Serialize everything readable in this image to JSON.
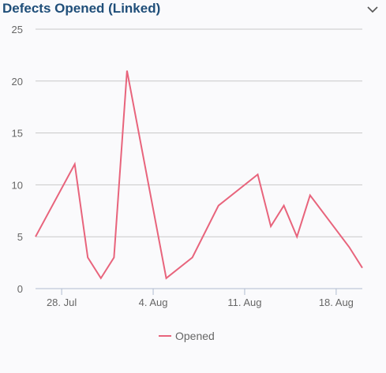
{
  "widget": {
    "title": "Defects Opened (Linked)",
    "collapse_icon": "chevron-down-icon"
  },
  "chart_data": {
    "type": "line",
    "title": "Defects Opened (Linked)",
    "xlabel": "",
    "ylabel": "",
    "ylim": [
      0,
      25
    ],
    "yticks": [
      0,
      5,
      10,
      15,
      20,
      25
    ],
    "xticks": [
      {
        "date": "2025-07-28",
        "label": "28. Jul"
      },
      {
        "date": "2025-08-04",
        "label": "4. Aug"
      },
      {
        "date": "2025-08-11",
        "label": "11. Aug"
      },
      {
        "date": "2025-08-18",
        "label": "18. Aug"
      }
    ],
    "xlim": [
      "2025-07-26",
      "2025-08-20"
    ],
    "grid": true,
    "legend_position": "bottom-center",
    "series": [
      {
        "name": "Opened",
        "color": "#e8647c",
        "x": [
          "2025-07-26",
          "2025-07-29",
          "2025-07-30",
          "2025-07-31",
          "2025-08-01",
          "2025-08-02",
          "2025-08-05",
          "2025-08-07",
          "2025-08-09",
          "2025-08-12",
          "2025-08-13",
          "2025-08-14",
          "2025-08-15",
          "2025-08-16",
          "2025-08-19",
          "2025-08-20"
        ],
        "y": [
          5,
          12,
          3,
          1,
          3,
          21,
          1,
          3,
          8,
          11,
          6,
          8,
          5,
          9,
          4,
          2
        ]
      }
    ]
  }
}
